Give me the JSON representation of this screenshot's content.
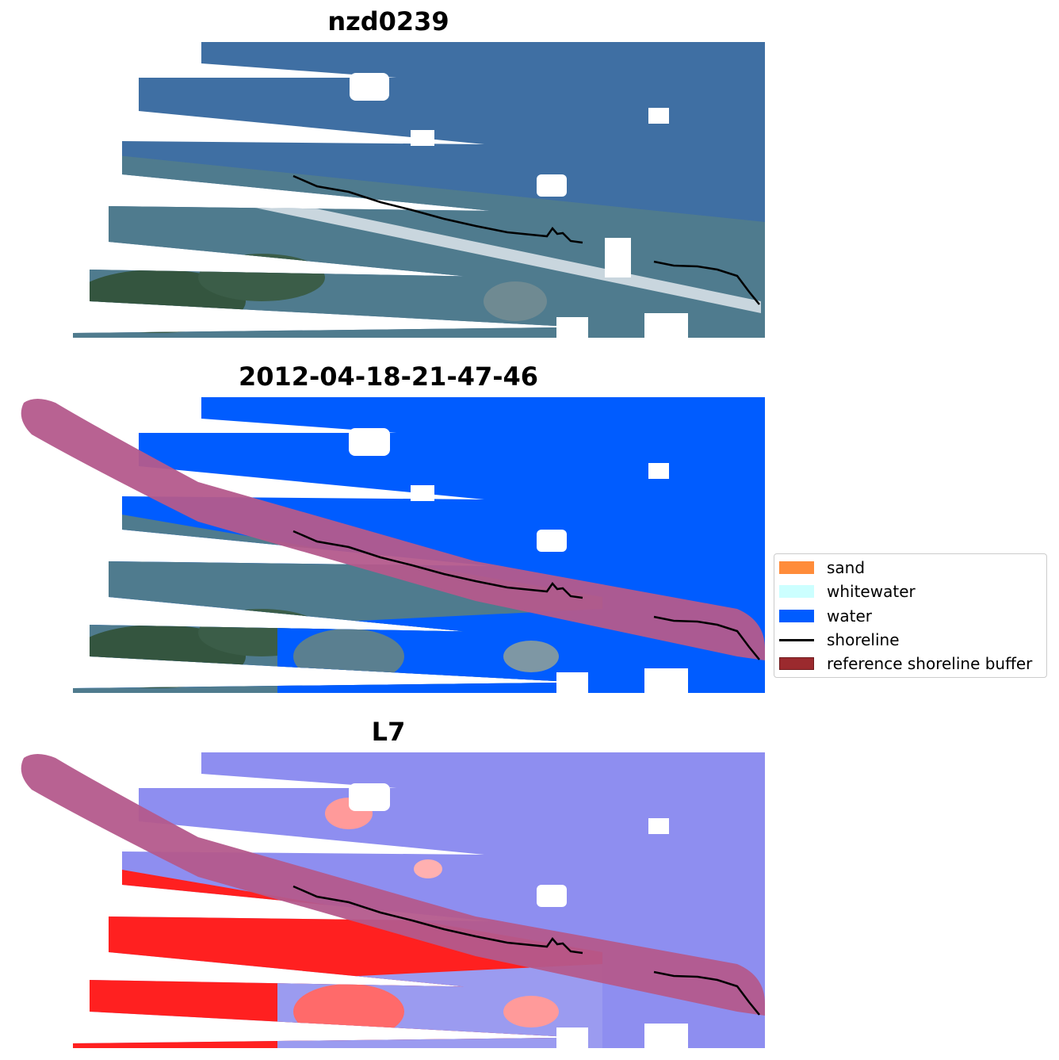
{
  "titles": {
    "panel1": "nzd0239",
    "panel2": "2012-04-18-21-47-46",
    "panel3": "L7"
  },
  "legend": {
    "items": [
      {
        "label": "sand",
        "color": "#ff8c3a",
        "kind": "patch"
      },
      {
        "label": "whitewater",
        "color": "#ccffff",
        "kind": "patch"
      },
      {
        "label": "water",
        "color": "#005cff",
        "kind": "patch"
      },
      {
        "label": "shoreline",
        "color": "#000000",
        "kind": "line"
      },
      {
        "label": "reference shoreline buffer",
        "color": "#9b2a2e",
        "kind": "patch"
      }
    ]
  },
  "colors": {
    "water_rgb": "#3f6fa3",
    "land_rgb": "#4a7a8a",
    "vegetation": "#3b5d48",
    "class_water": "#005cff",
    "buffer": "#b45a8c",
    "index_blue": "#8e8ef0",
    "index_red": "#ff2020"
  }
}
